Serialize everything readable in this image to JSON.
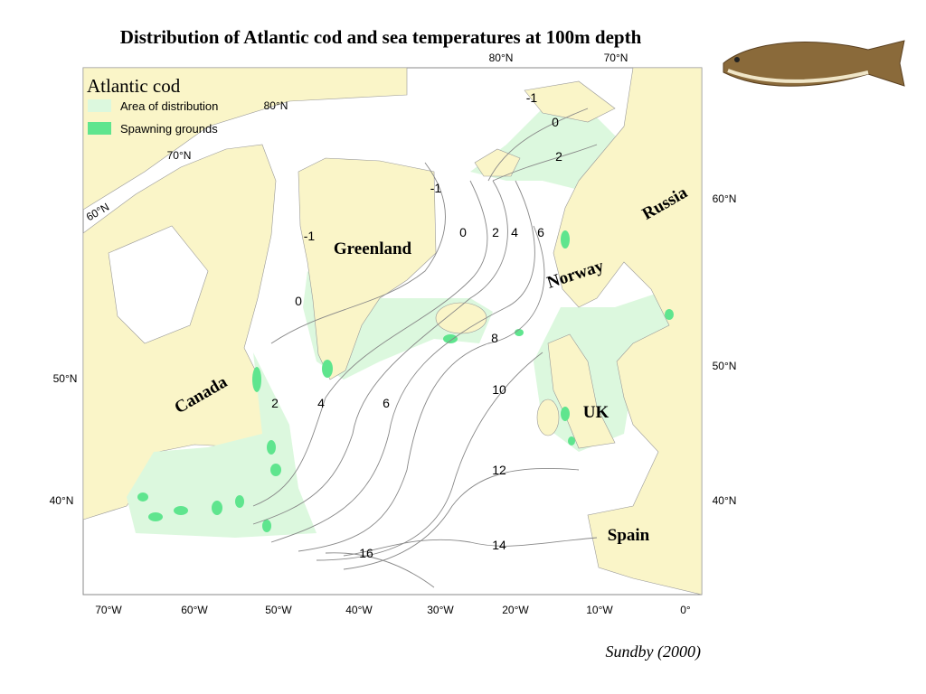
{
  "header": {
    "title": "Distribution of Atlantic cod and sea temperatures at 100m depth"
  },
  "legend": {
    "title": "Atlantic cod",
    "items": [
      "Area of distribution",
      "Spawning grounds"
    ]
  },
  "latitude_labels": [
    "80°N",
    "70°N",
    "60°N",
    "80°N",
    "70°N",
    "60°N",
    "50°N",
    "40°N",
    "50°N",
    "40°N"
  ],
  "longitude_labels": [
    "70°W",
    "60°W",
    "50°W",
    "40°W",
    "30°W",
    "20°W",
    "10°W",
    "0°"
  ],
  "isotherm_labels": [
    "-1",
    "0",
    "2",
    "-1",
    "-1",
    "0",
    "2",
    "4",
    "6",
    "0",
    "8",
    "10",
    "12",
    "14",
    "16",
    "2",
    "4",
    "6"
  ],
  "regions": [
    "Greenland",
    "Canada",
    "Norway",
    "Russia",
    "UK",
    "Spain"
  ],
  "source": "Sundby (2000)"
}
